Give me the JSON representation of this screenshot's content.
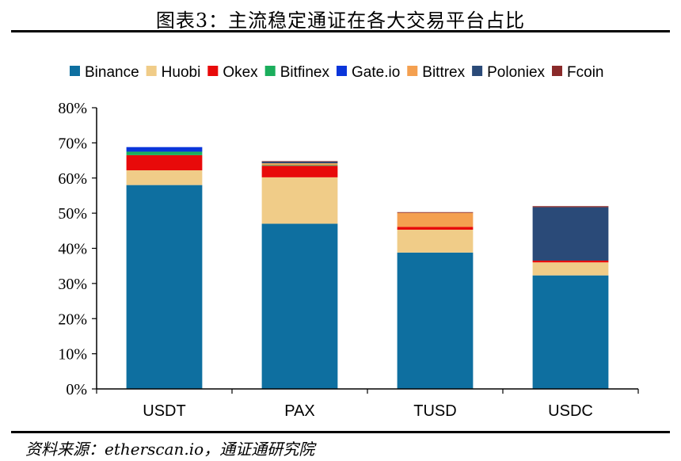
{
  "figure": {
    "title": "图表3：主流稳定通证在各大交易平台占比",
    "source": "资料来源：etherscan.io，通证通研究院"
  },
  "chart_data": {
    "type": "bar",
    "stacked": true,
    "categories": [
      "USDT",
      "PAX",
      "TUSD",
      "USDC"
    ],
    "series": [
      {
        "name": "Binance",
        "color": "#0E6FA0",
        "values": [
          58,
          47,
          38.8,
          32.3
        ]
      },
      {
        "name": "Huobi",
        "color": "#F0CC88",
        "values": [
          4.2,
          13.2,
          6.5,
          3.7
        ]
      },
      {
        "name": "Okex",
        "color": "#E80A0A",
        "values": [
          4.3,
          3.3,
          0.8,
          0.5
        ]
      },
      {
        "name": "Bitfinex",
        "color": "#1BAE5C",
        "values": [
          1.0,
          0.2,
          0,
          0
        ]
      },
      {
        "name": "Gate.io",
        "color": "#0A35DA",
        "values": [
          1.3,
          0,
          0,
          0
        ]
      },
      {
        "name": "Bittrex",
        "color": "#F4A050",
        "values": [
          0,
          0.5,
          4.0,
          0
        ]
      },
      {
        "name": "Poloniex",
        "color": "#2A4A78",
        "values": [
          0,
          0.5,
          0,
          15.2
        ]
      },
      {
        "name": "Fcoin",
        "color": "#8A2A2A",
        "values": [
          0,
          0.1,
          0.2,
          0.3
        ]
      }
    ],
    "ylim": [
      0,
      80
    ],
    "yticks": [
      0,
      10,
      20,
      30,
      40,
      50,
      60,
      70,
      80
    ],
    "ytick_labels": [
      "0%",
      "10%",
      "20%",
      "30%",
      "40%",
      "50%",
      "60%",
      "70%",
      "80%"
    ],
    "legend_position": "top",
    "grid": false
  }
}
